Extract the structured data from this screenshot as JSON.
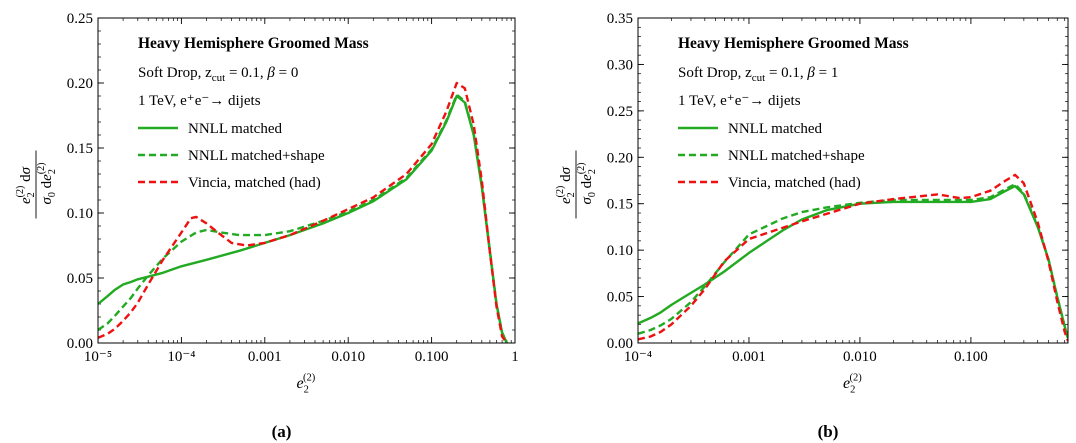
{
  "chart_data": [
    {
      "type": "line",
      "title": "Heavy Hemisphere Groomed Mass",
      "info_lines": [
        "Soft Drop, z_cut = 0.1, β = 0",
        "1 TeV, e⁺e⁻→ dijets"
      ],
      "caption": "(a)",
      "xlabel": "e2(2)",
      "ylabel": "e2(2)/σ0 dσ/de2(2)",
      "xscale": "log",
      "xlim": [
        1e-05,
        1
      ],
      "ylim": [
        0,
        0.25
      ],
      "xticks": [
        1e-05,
        0.0001,
        0.001,
        0.01,
        0.1,
        1
      ],
      "xtick_labels": [
        "10⁻⁵",
        "10⁻⁴",
        "0.001",
        "0.010",
        "0.100",
        "1"
      ],
      "yticks": [
        0,
        0.05,
        0.1,
        0.15,
        0.2,
        0.25
      ],
      "ytick_labels": [
        "0.00",
        "0.05",
        "0.10",
        "0.15",
        "0.20",
        "0.25"
      ],
      "legend_position": "top-left",
      "series": [
        {
          "name": "NNLL matched",
          "color": "#22aa22",
          "dash": "solid",
          "x": [
            1e-05,
            1.3e-05,
            1.6e-05,
            2e-05,
            2.5e-05,
            3e-05,
            4e-05,
            6e-05,
            0.0001,
            0.0002,
            0.0005,
            0.001,
            0.002,
            0.005,
            0.01,
            0.02,
            0.05,
            0.1,
            0.15,
            0.2,
            0.25,
            0.32,
            0.4,
            0.5,
            0.6,
            0.7,
            0.8
          ],
          "y": [
            0.03,
            0.036,
            0.041,
            0.045,
            0.047,
            0.049,
            0.051,
            0.054,
            0.059,
            0.064,
            0.071,
            0.077,
            0.083,
            0.092,
            0.1,
            0.109,
            0.126,
            0.148,
            0.17,
            0.19,
            0.185,
            0.16,
            0.12,
            0.07,
            0.03,
            0.008,
            0.0
          ]
        },
        {
          "name": "NNLL matched+shape",
          "color": "#22aa22",
          "dash": "dashed",
          "x": [
            1e-05,
            1.3e-05,
            1.6e-05,
            2e-05,
            2.5e-05,
            3e-05,
            4e-05,
            6e-05,
            0.0001,
            0.00015,
            0.0002,
            0.0003,
            0.0005,
            0.001,
            0.002,
            0.005,
            0.01,
            0.02,
            0.05,
            0.1,
            0.15,
            0.2,
            0.25,
            0.32,
            0.4,
            0.5,
            0.6,
            0.7,
            0.8
          ],
          "y": [
            0.01,
            0.015,
            0.021,
            0.028,
            0.035,
            0.042,
            0.052,
            0.065,
            0.078,
            0.085,
            0.087,
            0.085,
            0.083,
            0.083,
            0.086,
            0.094,
            0.101,
            0.11,
            0.127,
            0.149,
            0.171,
            0.191,
            0.186,
            0.161,
            0.121,
            0.071,
            0.03,
            0.008,
            0.0
          ]
        },
        {
          "name": "Vincia, matched (had)",
          "color": "#ee1111",
          "dash": "dashed",
          "x": [
            1e-05,
            1.3e-05,
            1.6e-05,
            2e-05,
            2.5e-05,
            3e-05,
            4e-05,
            6e-05,
            0.0001,
            0.00013,
            0.00015,
            0.0002,
            0.0003,
            0.0004,
            0.0006,
            0.001,
            0.002,
            0.005,
            0.01,
            0.02,
            0.05,
            0.1,
            0.15,
            0.2,
            0.25,
            0.32,
            0.4,
            0.5,
            0.6,
            0.7,
            0.8
          ],
          "y": [
            0.004,
            0.007,
            0.011,
            0.017,
            0.024,
            0.031,
            0.045,
            0.064,
            0.085,
            0.096,
            0.097,
            0.092,
            0.083,
            0.077,
            0.075,
            0.077,
            0.083,
            0.094,
            0.103,
            0.112,
            0.13,
            0.153,
            0.178,
            0.2,
            0.196,
            0.168,
            0.125,
            0.07,
            0.028,
            0.005,
            0.0
          ]
        }
      ]
    },
    {
      "type": "line",
      "title": "Heavy Hemisphere Groomed Mass",
      "info_lines": [
        "Soft Drop, z_cut = 0.1, β = 1",
        "1 TeV, e⁺e⁻→ dijets"
      ],
      "caption": "(b)",
      "xlabel": "e2(2)",
      "ylabel": "e2(2)/σ0 dσ/de2(2)",
      "xscale": "log",
      "xlim": [
        0.0001,
        0.75
      ],
      "ylim": [
        0,
        0.35
      ],
      "xticks": [
        0.0001,
        0.001,
        0.01,
        0.1
      ],
      "xtick_labels": [
        "10⁻⁴",
        "0.001",
        "0.010",
        "0.100"
      ],
      "yticks": [
        0,
        0.05,
        0.1,
        0.15,
        0.2,
        0.25,
        0.3,
        0.35
      ],
      "ytick_labels": [
        "0.00",
        "0.05",
        "0.10",
        "0.15",
        "0.20",
        "0.25",
        "0.30",
        "0.35"
      ],
      "legend_position": "top-left",
      "series": [
        {
          "name": "NNLL matched",
          "color": "#22aa22",
          "dash": "solid",
          "x": [
            0.0001,
            0.00013,
            0.00016,
            0.0002,
            0.0003,
            0.0004,
            0.0006,
            0.001,
            0.002,
            0.003,
            0.005,
            0.01,
            0.02,
            0.05,
            0.1,
            0.15,
            0.2,
            0.25,
            0.3,
            0.4,
            0.5,
            0.6,
            0.7,
            0.75
          ],
          "y": [
            0.021,
            0.027,
            0.033,
            0.041,
            0.054,
            0.063,
            0.077,
            0.097,
            0.121,
            0.133,
            0.143,
            0.15,
            0.152,
            0.152,
            0.152,
            0.155,
            0.163,
            0.169,
            0.16,
            0.125,
            0.09,
            0.05,
            0.018,
            0.005
          ]
        },
        {
          "name": "NNLL matched+shape",
          "color": "#22aa22",
          "dash": "dashed",
          "x": [
            0.0001,
            0.00013,
            0.00016,
            0.0002,
            0.0003,
            0.0004,
            0.0006,
            0.001,
            0.002,
            0.003,
            0.005,
            0.01,
            0.02,
            0.05,
            0.1,
            0.15,
            0.2,
            0.25,
            0.3,
            0.4,
            0.5,
            0.6,
            0.7,
            0.75
          ],
          "y": [
            0.01,
            0.014,
            0.019,
            0.026,
            0.044,
            0.061,
            0.087,
            0.117,
            0.134,
            0.141,
            0.146,
            0.151,
            0.154,
            0.154,
            0.154,
            0.157,
            0.165,
            0.171,
            0.161,
            0.126,
            0.09,
            0.05,
            0.018,
            0.005
          ]
        },
        {
          "name": "Vincia, matched (had)",
          "color": "#ee1111",
          "dash": "dashed",
          "x": [
            0.0001,
            0.00013,
            0.00016,
            0.0002,
            0.0003,
            0.0004,
            0.0006,
            0.001,
            0.002,
            0.003,
            0.005,
            0.01,
            0.02,
            0.05,
            0.08,
            0.1,
            0.15,
            0.2,
            0.25,
            0.3,
            0.4,
            0.5,
            0.6,
            0.7,
            0.75
          ],
          "y": [
            0.004,
            0.007,
            0.012,
            0.02,
            0.04,
            0.058,
            0.088,
            0.112,
            0.124,
            0.131,
            0.139,
            0.15,
            0.155,
            0.16,
            0.156,
            0.157,
            0.164,
            0.174,
            0.181,
            0.172,
            0.13,
            0.088,
            0.045,
            0.012,
            0.002
          ]
        }
      ]
    }
  ]
}
